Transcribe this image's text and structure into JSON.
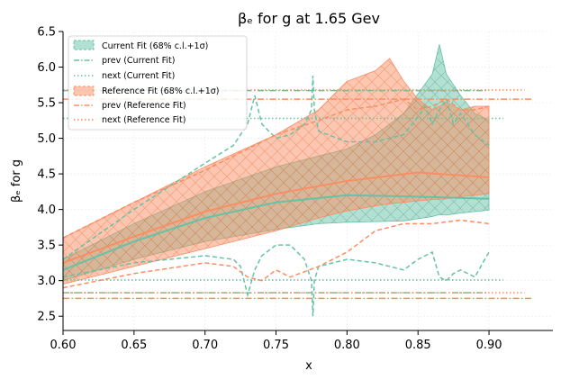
{
  "chart_data": {
    "type": "area",
    "title": "βₑ for g at 1.65 Gev",
    "xlabel": "x",
    "ylabel": "βₑ for g",
    "xlim": [
      0.6,
      0.945
    ],
    "ylim": [
      2.3,
      6.5
    ],
    "xticks": [
      "0.60",
      "0.65",
      "0.70",
      "0.75",
      "0.80",
      "0.85",
      "0.90"
    ],
    "yticks": [
      "2.5",
      "3.0",
      "3.5",
      "4.0",
      "4.5",
      "5.0",
      "5.5",
      "6.0",
      "6.5"
    ],
    "grid": true,
    "legend_position": "upper-left",
    "colors": {
      "current": "#66c2a5",
      "reference": "#fc8d62"
    },
    "legend": [
      "Current Fit (68% c.l.+1σ)",
      "prev (Current Fit)",
      "next (Current Fit)",
      "Reference Fit (68% c.l.+1σ)",
      "prev (Reference Fit)",
      "next (Reference Fit)"
    ],
    "series": [
      {
        "name": "Current Fit (68% c.l.+1σ)",
        "kind": "band",
        "x": [
          0.6,
          0.65,
          0.7,
          0.75,
          0.78,
          0.8,
          0.82,
          0.84,
          0.86,
          0.865,
          0.87,
          0.88,
          0.89,
          0.9
        ],
        "lower": [
          3.0,
          3.3,
          3.55,
          3.72,
          3.8,
          3.82,
          3.83,
          3.84,
          3.9,
          3.93,
          3.92,
          3.95,
          3.97,
          3.99
        ],
        "upper": [
          3.3,
          3.8,
          4.25,
          4.6,
          4.75,
          4.85,
          5.05,
          5.35,
          5.9,
          6.32,
          5.9,
          5.6,
          5.35,
          5.25
        ]
      },
      {
        "name": "Current Fit central",
        "kind": "line",
        "x": [
          0.6,
          0.65,
          0.7,
          0.75,
          0.8,
          0.85,
          0.9
        ],
        "y": [
          3.15,
          3.55,
          3.88,
          4.1,
          4.2,
          4.18,
          4.15
        ]
      },
      {
        "name": "Reference Fit (68% c.l.+1σ)",
        "kind": "band",
        "x": [
          0.6,
          0.65,
          0.7,
          0.75,
          0.78,
          0.8,
          0.82,
          0.83,
          0.84,
          0.85,
          0.86,
          0.87,
          0.88,
          0.89,
          0.9
        ],
        "lower": [
          2.95,
          3.2,
          3.45,
          3.7,
          3.88,
          3.98,
          4.05,
          4.08,
          4.1,
          4.12,
          4.14,
          4.15,
          4.18,
          4.2,
          4.22
        ],
        "upper": [
          3.6,
          4.1,
          4.6,
          5.05,
          5.4,
          5.8,
          5.95,
          6.12,
          5.8,
          5.55,
          5.4,
          5.5,
          5.4,
          5.45,
          5.45
        ]
      },
      {
        "name": "Reference Fit central",
        "kind": "line",
        "x": [
          0.6,
          0.65,
          0.7,
          0.75,
          0.8,
          0.85,
          0.9
        ],
        "y": [
          3.25,
          3.62,
          3.97,
          4.22,
          4.4,
          4.52,
          4.45
        ]
      },
      {
        "name": "prev (Current Fit)",
        "kind": "hline",
        "y": 5.67,
        "x": [
          0.6,
          0.9
        ],
        "dash": "dashdot"
      },
      {
        "name": "prev (Current Fit)",
        "kind": "hline",
        "y": 2.83,
        "x": [
          0.6,
          0.9
        ],
        "dash": "dashdot"
      },
      {
        "name": "next (Current Fit)",
        "kind": "hline",
        "y": 5.28,
        "x": [
          0.6,
          0.91
        ],
        "dash": "dotted"
      },
      {
        "name": "next (Current Fit)",
        "kind": "hline",
        "y": 3.01,
        "x": [
          0.6,
          0.91
        ],
        "dash": "dotted"
      },
      {
        "name": "prev (Reference Fit)",
        "kind": "hline",
        "y": 5.55,
        "x": [
          0.6,
          0.93
        ],
        "dash": "dashdot"
      },
      {
        "name": "prev (Reference Fit)",
        "kind": "hline",
        "y": 2.75,
        "x": [
          0.6,
          0.93
        ],
        "dash": "dashdot"
      },
      {
        "name": "next (Reference Fit)",
        "kind": "hline",
        "y": 5.68,
        "x": [
          0.6,
          0.925
        ],
        "dash": "dotted"
      },
      {
        "name": "next (Reference Fit)",
        "kind": "hline",
        "y": 2.83,
        "x": [
          0.6,
          0.925
        ],
        "dash": "dotted"
      },
      {
        "name": "Current Fit upper dashed",
        "kind": "dashed",
        "x": [
          0.6,
          0.65,
          0.7,
          0.72,
          0.73,
          0.735,
          0.74,
          0.75,
          0.76,
          0.77,
          0.775,
          0.776,
          0.777,
          0.78,
          0.8,
          0.82,
          0.84,
          0.85,
          0.855,
          0.86,
          0.865,
          0.87,
          0.875,
          0.88,
          0.89,
          0.9
        ],
        "y": [
          3.3,
          4.0,
          4.65,
          4.9,
          5.2,
          5.6,
          5.2,
          5.0,
          5.05,
          5.2,
          5.4,
          5.88,
          5.4,
          5.1,
          4.95,
          4.95,
          5.05,
          5.3,
          5.45,
          5.2,
          5.4,
          5.55,
          5.2,
          5.35,
          5.05,
          4.9
        ]
      },
      {
        "name": "Current Fit lower dashed",
        "kind": "dashed",
        "x": [
          0.6,
          0.65,
          0.7,
          0.72,
          0.725,
          0.73,
          0.735,
          0.74,
          0.75,
          0.76,
          0.77,
          0.775,
          0.776,
          0.777,
          0.78,
          0.8,
          0.82,
          0.84,
          0.85,
          0.86,
          0.865,
          0.87,
          0.875,
          0.88,
          0.89,
          0.9
        ],
        "y": [
          3.05,
          3.25,
          3.35,
          3.3,
          3.2,
          2.8,
          3.15,
          3.35,
          3.5,
          3.5,
          3.3,
          3.0,
          2.5,
          3.0,
          3.2,
          3.3,
          3.25,
          3.15,
          3.3,
          3.4,
          3.05,
          3.0,
          3.1,
          3.15,
          3.05,
          3.4
        ]
      },
      {
        "name": "Reference Fit upper dashed",
        "kind": "dashed",
        "x": [
          0.6,
          0.65,
          0.7,
          0.75,
          0.78,
          0.8,
          0.82,
          0.84,
          0.85,
          0.86,
          0.87,
          0.88,
          0.89,
          0.9
        ],
        "y": [
          3.6,
          4.1,
          4.55,
          5.05,
          5.25,
          5.4,
          5.45,
          5.55,
          5.4,
          5.45,
          5.55,
          5.4,
          5.4,
          5.45
        ]
      },
      {
        "name": "Reference Fit lower dashed",
        "kind": "dashed",
        "x": [
          0.6,
          0.65,
          0.7,
          0.72,
          0.73,
          0.74,
          0.75,
          0.76,
          0.78,
          0.8,
          0.82,
          0.84,
          0.86,
          0.88,
          0.9
        ],
        "y": [
          2.9,
          3.1,
          3.25,
          3.2,
          3.05,
          3.0,
          3.15,
          3.05,
          3.2,
          3.4,
          3.7,
          3.8,
          3.8,
          3.85,
          3.8
        ]
      }
    ]
  }
}
